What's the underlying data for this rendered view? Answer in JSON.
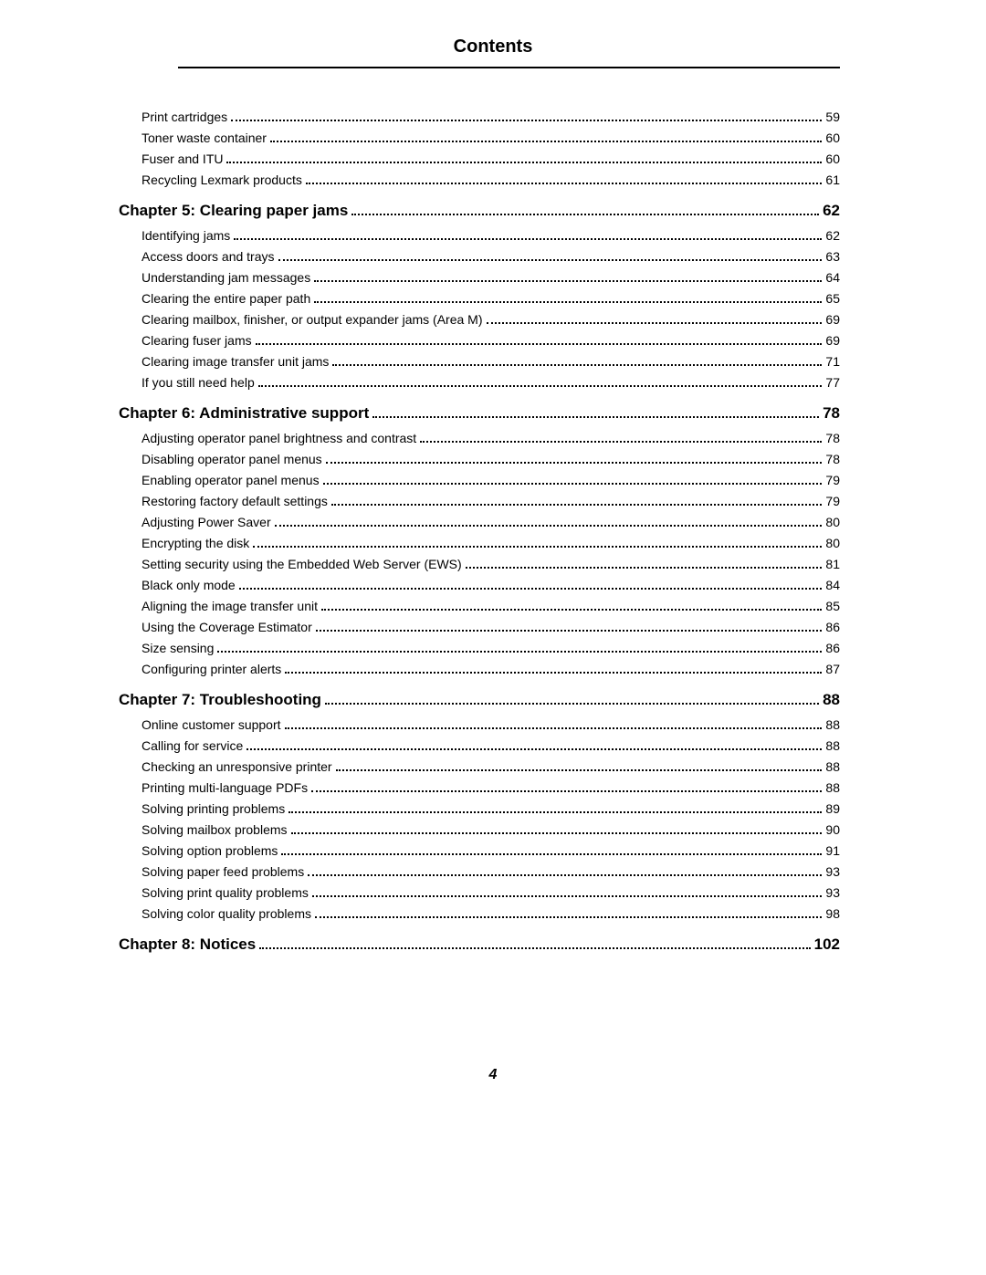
{
  "header": {
    "title": "Contents"
  },
  "toc": {
    "pre_items": [
      {
        "label": "Print cartridges",
        "page": "59"
      },
      {
        "label": "Toner waste container",
        "page": "60"
      },
      {
        "label": "Fuser and ITU",
        "page": "60"
      },
      {
        "label": "Recycling Lexmark products",
        "page": "61"
      }
    ],
    "chapters": [
      {
        "label": "Chapter 5:  Clearing paper jams",
        "page": "62",
        "items": [
          {
            "label": "Identifying jams",
            "page": "62"
          },
          {
            "label": "Access doors and trays",
            "page": "63"
          },
          {
            "label": "Understanding jam messages",
            "page": "64"
          },
          {
            "label": "Clearing the entire paper path",
            "page": "65"
          },
          {
            "label": "Clearing mailbox, finisher, or output expander jams (Area M)",
            "page": "69"
          },
          {
            "label": "Clearing fuser jams",
            "page": "69"
          },
          {
            "label": "Clearing image transfer unit jams",
            "page": "71"
          },
          {
            "label": "If you still need help",
            "page": "77"
          }
        ]
      },
      {
        "label": "Chapter 6:  Administrative support",
        "page": "78",
        "items": [
          {
            "label": "Adjusting operator panel brightness and contrast",
            "page": "78"
          },
          {
            "label": "Disabling operator panel menus",
            "page": "78"
          },
          {
            "label": "Enabling operator panel menus",
            "page": "79"
          },
          {
            "label": "Restoring factory default settings",
            "page": "79"
          },
          {
            "label": "Adjusting Power Saver",
            "page": "80"
          },
          {
            "label": "Encrypting the disk",
            "page": "80"
          },
          {
            "label": "Setting security using the Embedded Web Server (EWS)",
            "page": "81"
          },
          {
            "label": "Black only mode",
            "page": "84"
          },
          {
            "label": "Aligning the image transfer unit",
            "page": "85"
          },
          {
            "label": "Using the Coverage Estimator",
            "page": "86"
          },
          {
            "label": "Size sensing",
            "page": "86"
          },
          {
            "label": "Configuring printer alerts",
            "page": "87"
          }
        ]
      },
      {
        "label": "Chapter 7:  Troubleshooting",
        "page": "88",
        "items": [
          {
            "label": "Online customer support",
            "page": "88"
          },
          {
            "label": "Calling for service",
            "page": "88"
          },
          {
            "label": "Checking an unresponsive printer",
            "page": "88"
          },
          {
            "label": "Printing multi-language PDFs",
            "page": "88"
          },
          {
            "label": "Solving printing problems",
            "page": "89"
          },
          {
            "label": "Solving mailbox problems",
            "page": "90"
          },
          {
            "label": "Solving option problems",
            "page": "91"
          },
          {
            "label": "Solving paper feed problems",
            "page": "93"
          },
          {
            "label": "Solving print quality problems",
            "page": "93"
          },
          {
            "label": "Solving color quality problems",
            "page": "98"
          }
        ]
      },
      {
        "label": "Chapter 8:  Notices",
        "page": "102",
        "items": []
      }
    ]
  },
  "footer": {
    "page_number": "4"
  }
}
